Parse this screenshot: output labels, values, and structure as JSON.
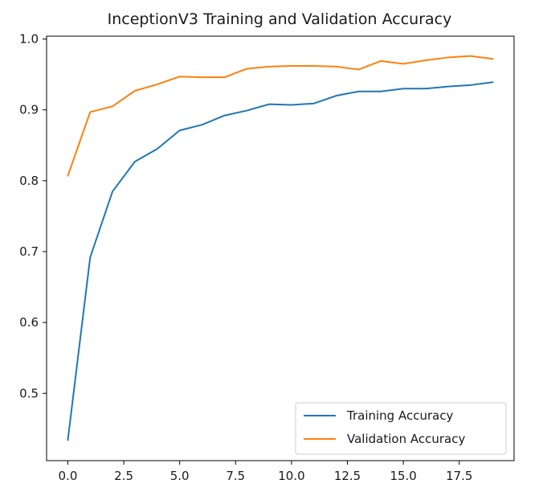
{
  "chart_data": {
    "type": "line",
    "title": "InceptionV3 Training and Validation Accuracy",
    "xlabel": "",
    "ylabel": "",
    "xlim": [
      -0.95,
      19.95
    ],
    "ylim": [
      0.405,
      1.004
    ],
    "x_ticks": [
      0.0,
      2.5,
      5.0,
      7.5,
      10.0,
      12.5,
      15.0,
      17.5
    ],
    "x_tick_labels": [
      "0.0",
      "2.5",
      "5.0",
      "7.5",
      "10.0",
      "12.5",
      "15.0",
      "17.5"
    ],
    "y_ticks": [
      0.5,
      0.6,
      0.7,
      0.8,
      0.9,
      1.0
    ],
    "y_tick_labels": [
      "0.5",
      "0.6",
      "0.7",
      "0.8",
      "0.9",
      "1.0"
    ],
    "grid": false,
    "legend_position": "lower-right",
    "x": [
      0,
      1,
      2,
      3,
      4,
      5,
      6,
      7,
      8,
      9,
      10,
      11,
      12,
      13,
      14,
      15,
      16,
      17,
      18,
      19
    ],
    "series": [
      {
        "name": "Training Accuracy",
        "color": "#1f77b4",
        "values": [
          0.434,
          0.692,
          0.785,
          0.827,
          0.845,
          0.871,
          0.879,
          0.892,
          0.899,
          0.908,
          0.907,
          0.909,
          0.92,
          0.926,
          0.926,
          0.93,
          0.93,
          0.933,
          0.935,
          0.939
        ]
      },
      {
        "name": "Validation Accuracy",
        "color": "#ff7f0e",
        "values": [
          0.807,
          0.897,
          0.905,
          0.927,
          0.936,
          0.947,
          0.946,
          0.946,
          0.958,
          0.961,
          0.962,
          0.962,
          0.961,
          0.957,
          0.969,
          0.965,
          0.97,
          0.974,
          0.976,
          0.972
        ]
      }
    ]
  }
}
